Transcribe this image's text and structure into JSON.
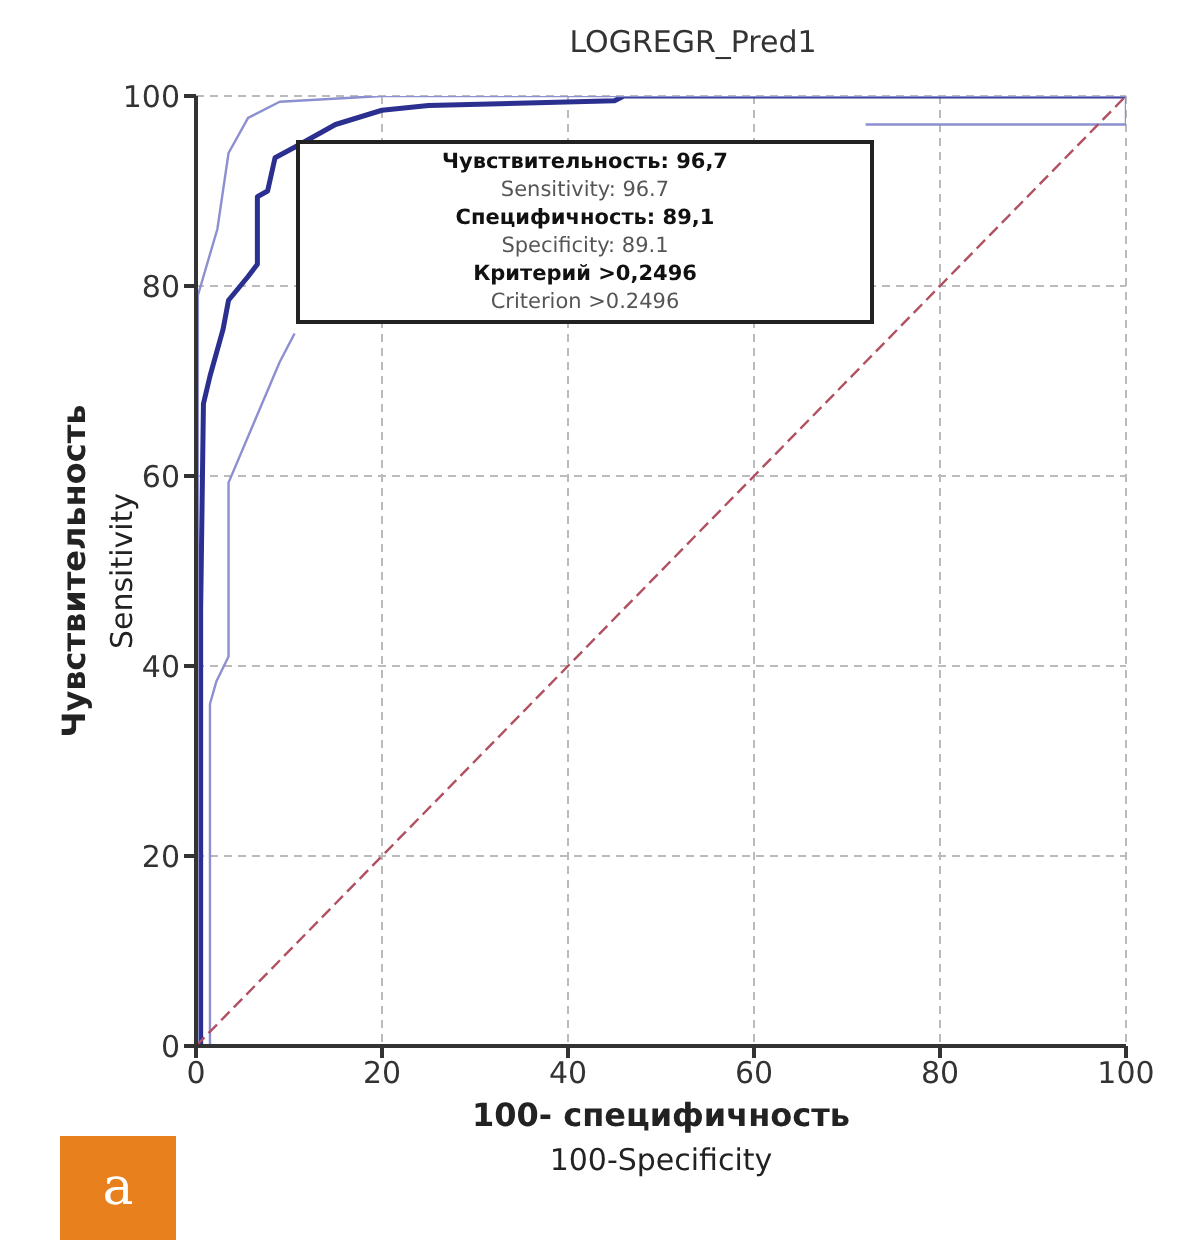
{
  "chart_data": {
    "type": "line",
    "title": "LOGREGR_Pred1",
    "xlabel": "100- специфичность\n100-Specificity",
    "ylabel": "Чувствительность\nSensitivity",
    "xlim": [
      0,
      100
    ],
    "ylim": [
      0,
      100
    ],
    "xticks": [
      0,
      20,
      40,
      60,
      80,
      100
    ],
    "yticks": [
      0,
      20,
      40,
      60,
      80,
      100
    ],
    "grid": true,
    "marker": "none",
    "series": [
      {
        "color": "#2b2f8f",
        "x": [
          0,
          0.5,
          0.5,
          0.8,
          1.5,
          2.9,
          3.5,
          5.6,
          6.6,
          6.6,
          7.7,
          8.5,
          10.6,
          15,
          20,
          25,
          45,
          46,
          100
        ],
        "values": [
          0,
          0,
          46,
          67.6,
          70.5,
          75.4,
          78.5,
          81,
          82.3,
          89.4,
          90,
          93.5,
          94.6,
          97,
          98.5,
          99,
          99.5,
          100,
          100
        ],
        "line_style": "solid"
      },
      {
        "color": "#8c8fd0",
        "x": [
          0,
          0.2,
          0.2,
          2.3,
          3.5,
          5.6,
          9,
          20,
          100
        ],
        "values": [
          0,
          0,
          79,
          86,
          94,
          97.7,
          99.4,
          100,
          100
        ],
        "line_style": "solid"
      },
      {
        "color": "#8c8fd0",
        "x": [
          0,
          1.5,
          1.5,
          2.2,
          3.5,
          3.5,
          6.4,
          9,
          10.6,
          12,
          72,
          100,
          100
        ],
        "values": [
          0,
          0,
          36,
          38.4,
          41,
          59.3,
          66,
          72,
          75,
          null,
          97,
          97,
          100
        ],
        "line_style": "solid"
      },
      {
        "color": "#b05060",
        "x": [
          0,
          100
        ],
        "values": [
          0,
          100
        ],
        "line_style": "dashed"
      }
    ],
    "annotations": [
      "Чувствительность: 96,7",
      "Sensitivity: 96.7",
      "Специфичность: 89,1",
      "Specificity: 89.1",
      "Критерий >0,2496",
      "Criterion >0.2496",
      "a"
    ]
  }
}
